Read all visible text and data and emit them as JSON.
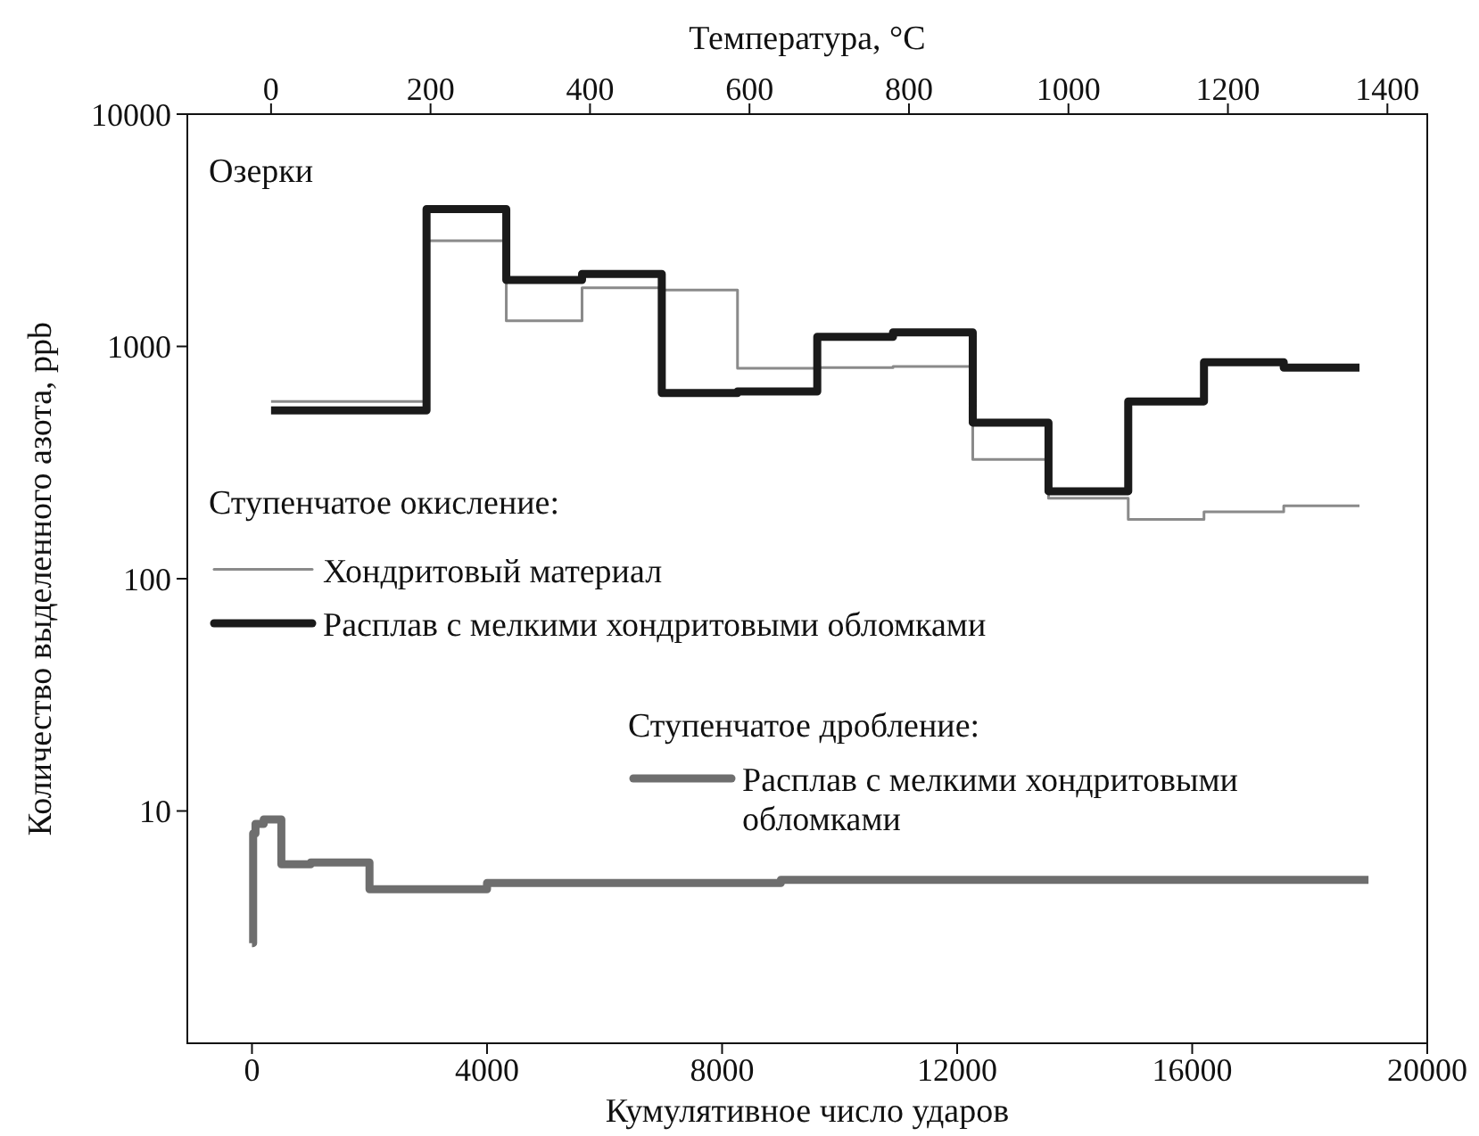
{
  "chart_data": {
    "type": "step",
    "xlabel": "Кумулятивное число ударов",
    "x2label": "Температура, °C",
    "ylabel": "Количество выделенного азота, ppb",
    "xlim": [
      -1100,
      20000
    ],
    "xticks": [
      0,
      4000,
      8000,
      12000,
      16000,
      20000
    ],
    "x2lim": [
      -105,
      1450
    ],
    "x2ticks": [
      0,
      200,
      400,
      600,
      800,
      1000,
      1200,
      1400
    ],
    "ylim": [
      1,
      10000
    ],
    "yticks": [
      10,
      100,
      1000,
      10000
    ],
    "log": "y",
    "grid": false,
    "legend": "left",
    "annotations": [
      "Озерки",
      "Ступенчатое окисление:",
      "Ступенчатое дробление:"
    ],
    "series": [
      {
        "name": "Хондритовый материал",
        "color": "#8a8a8a",
        "axis": "x2",
        "x": [
          0,
          195,
          295,
          390,
          490,
          585,
          685,
          780,
          880,
          975,
          1075,
          1170,
          1270,
          1365
        ],
        "values": [
          580,
          2850,
          1290,
          1790,
          1750,
          805,
          810,
          820,
          326,
          222,
          180,
          194,
          206,
          206
        ]
      },
      {
        "name": "Расплав с мелкими хондритовыми обломками",
        "color": "#1a1a1a",
        "axis": "x2",
        "x": [
          0,
          195,
          295,
          390,
          490,
          585,
          685,
          780,
          880,
          975,
          1075,
          1170,
          1270,
          1365
        ],
        "values": [
          530,
          3900,
          1930,
          2050,
          630,
          640,
          1100,
          1150,
          470,
          238,
          580,
          855,
          810,
          810
        ]
      },
      {
        "name": "Расплав с мелкими хондритовыми обломками",
        "color": "#6e6e6e",
        "x": [
          0,
          20,
          60,
          200,
          500,
          1000,
          2000,
          4000,
          9000,
          19000
        ],
        "values": [
          2.7,
          8.0,
          8.8,
          9.2,
          5.9,
          6.0,
          4.6,
          4.9,
          5.05,
          5.05
        ]
      }
    ]
  }
}
